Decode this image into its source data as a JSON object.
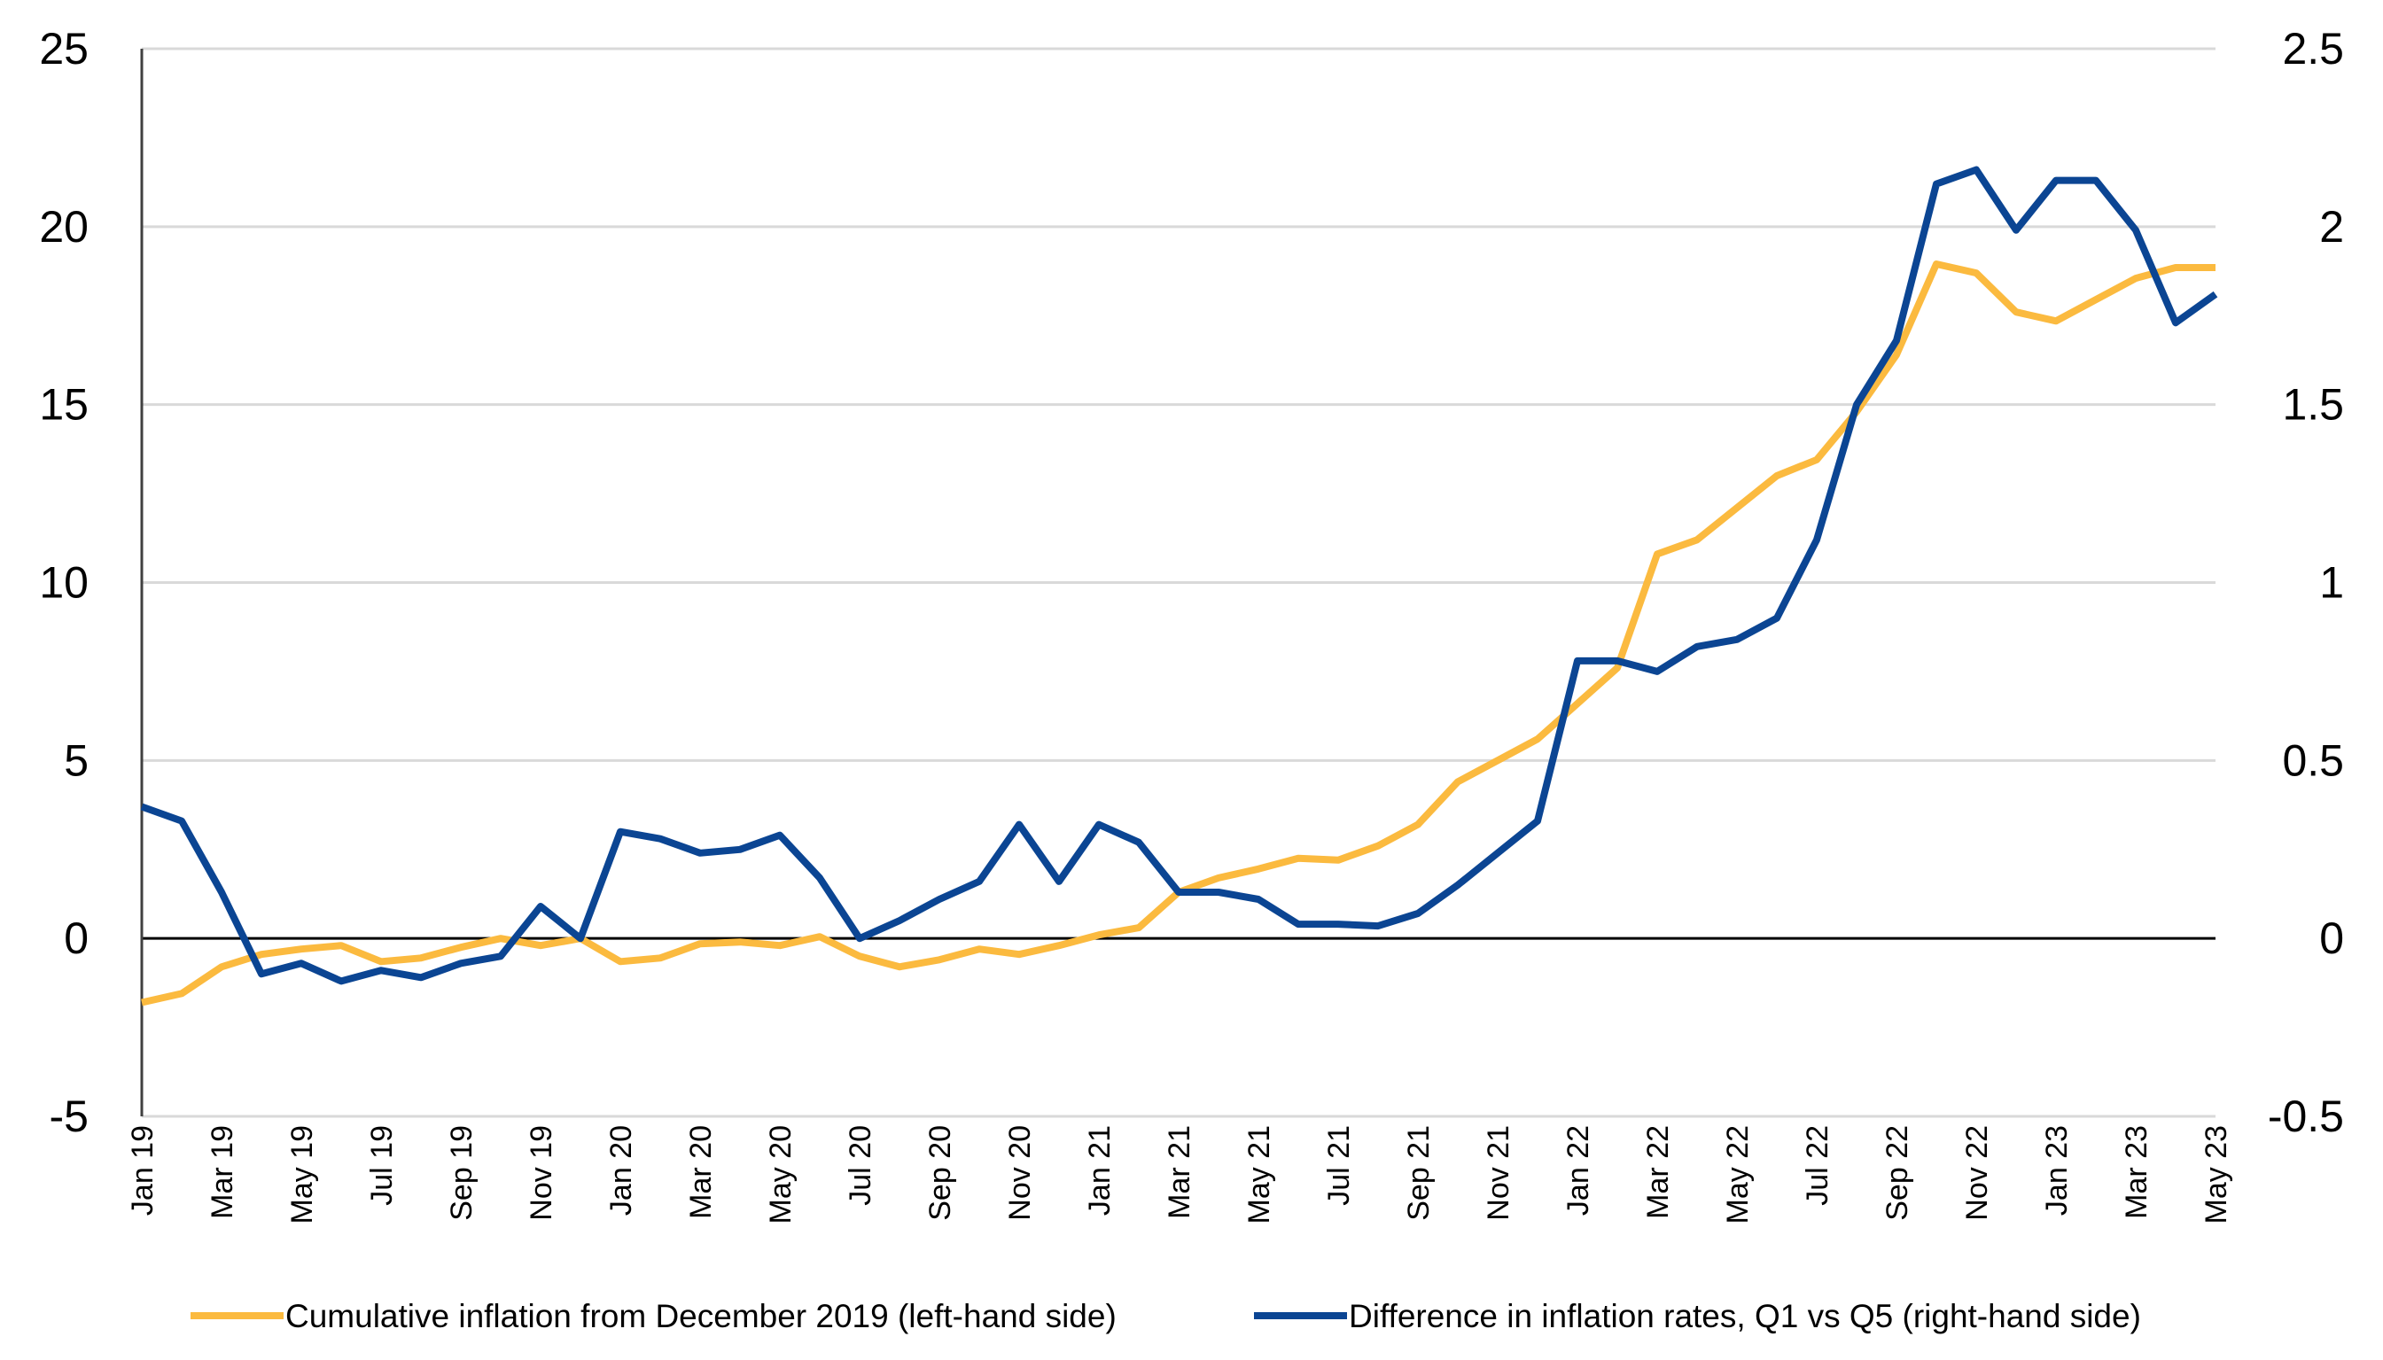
{
  "chart_data": {
    "type": "line",
    "title": "",
    "x": [
      "Jan 19",
      "Feb 19",
      "Mar 19",
      "Apr 19",
      "May 19",
      "Jun 19",
      "Jul 19",
      "Aug 19",
      "Sep 19",
      "Oct 19",
      "Nov 19",
      "Dec 19",
      "Jan 20",
      "Feb 20",
      "Mar 20",
      "Apr 20",
      "May 20",
      "Jun 20",
      "Jul 20",
      "Aug 20",
      "Sep 20",
      "Oct 20",
      "Nov 20",
      "Dec 20",
      "Jan 21",
      "Feb 21",
      "Mar 21",
      "Apr 21",
      "May 21",
      "Jun 21",
      "Jul 21",
      "Aug 21",
      "Sep 21",
      "Oct 21",
      "Nov 21",
      "Dec 21",
      "Jan 22",
      "Feb 22",
      "Mar 22",
      "Apr 22",
      "May 22",
      "Jun 22",
      "Jul 22",
      "Aug 22",
      "Sep 22",
      "Oct 22",
      "Nov 22",
      "Dec 22",
      "Jan 23",
      "Feb 23",
      "Mar 23",
      "Apr 23",
      "May 23"
    ],
    "x_tick_labels": [
      "Jan 19",
      "Mar 19",
      "May 19",
      "Jul 19",
      "Sep 19",
      "Nov 19",
      "Jan 20",
      "Mar 20",
      "May 20",
      "Jul 20",
      "Sep 20",
      "Nov 20",
      "Jan 21",
      "Mar 21",
      "May 21",
      "Jul 21",
      "Sep 21",
      "Nov 21",
      "Jan 22",
      "Mar 22",
      "May 22",
      "Jul 22",
      "Sep 22",
      "Nov 22",
      "Jan 23",
      "Mar 23",
      "May 23"
    ],
    "y_left": {
      "lim": [
        -5,
        25
      ],
      "ticks": [
        "-5",
        "0",
        "5",
        "10",
        "15",
        "20",
        "25"
      ]
    },
    "y_right": {
      "lim": [
        -0.5,
        2.5
      ],
      "ticks": [
        "-0.5",
        "0",
        "0.5",
        "1",
        "1.5",
        "2",
        "2.5"
      ]
    },
    "grid": true,
    "legend_position": "bottom",
    "series": [
      {
        "name": "Cumulative inflation from December 2019 (left-hand side)",
        "axis": "left",
        "color": "#FBBA3F",
        "values": [
          -1.8,
          -1.55,
          -0.8,
          -0.45,
          -0.3,
          -0.2,
          -0.65,
          -0.55,
          -0.25,
          0.0,
          -0.2,
          0.0,
          -0.65,
          -0.55,
          -0.15,
          -0.1,
          -0.2,
          0.05,
          -0.5,
          -0.8,
          -0.6,
          -0.3,
          -0.45,
          -0.2,
          0.1,
          0.3,
          1.3,
          1.7,
          1.95,
          2.25,
          2.2,
          2.6,
          3.2,
          4.4,
          5.0,
          5.6,
          6.6,
          7.6,
          10.8,
          11.2,
          12.1,
          13.0,
          13.45,
          14.8,
          16.4,
          18.95,
          18.7,
          17.6,
          17.35,
          17.95,
          18.55,
          18.85,
          18.85
        ]
      },
      {
        "name": "Difference in inflation rates, Q1 vs Q5 (right-hand side)",
        "axis": "right",
        "color": "#0B4593",
        "values": [
          0.37,
          0.33,
          0.13,
          -0.1,
          -0.07,
          -0.12,
          -0.09,
          -0.11,
          -0.07,
          -0.05,
          0.09,
          0.0,
          0.3,
          0.28,
          0.24,
          0.25,
          0.29,
          0.17,
          0.0,
          0.05,
          0.11,
          0.16,
          0.32,
          0.16,
          0.32,
          0.27,
          0.13,
          0.13,
          0.11,
          0.04,
          0.04,
          0.035,
          0.07,
          0.15,
          0.24,
          0.33,
          0.78,
          0.78,
          0.75,
          0.82,
          0.84,
          0.9,
          1.12,
          1.5,
          1.68,
          2.12,
          2.16,
          1.99,
          2.13,
          2.13,
          1.99,
          1.73,
          1.81
        ]
      }
    ]
  }
}
